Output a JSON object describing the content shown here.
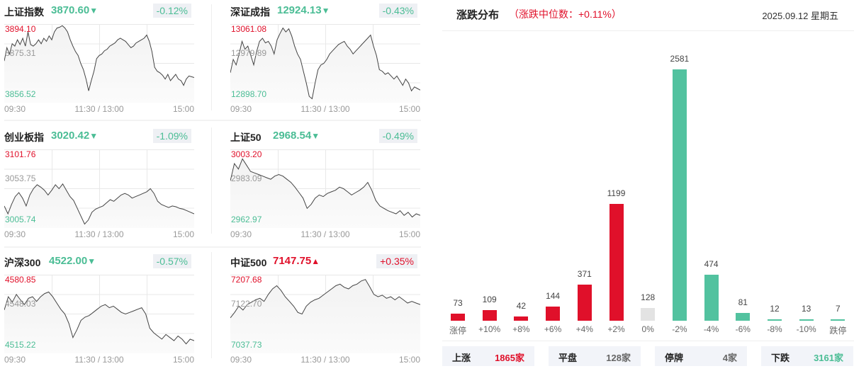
{
  "indices": [
    {
      "name": "上证指数",
      "price": "3870.60",
      "arrow": "▼",
      "dir": "down",
      "change": "-0.12%",
      "hi": "3894.10",
      "mid": "3875.31",
      "lo": "3856.52",
      "line": [
        0.53,
        0.7,
        0.62,
        0.75,
        0.72,
        0.8,
        0.74,
        0.82,
        0.72,
        0.9,
        0.74,
        0.72,
        0.75,
        0.8,
        0.75,
        0.82,
        0.78,
        0.85,
        0.8,
        0.9,
        0.95,
        0.96,
        0.98,
        0.95,
        0.9,
        0.8,
        0.72,
        0.65,
        0.6,
        0.5,
        0.42,
        0.3,
        0.15,
        0.28,
        0.4,
        0.56,
        0.6,
        0.62,
        0.66,
        0.68,
        0.72,
        0.74,
        0.76,
        0.8,
        0.82,
        0.8,
        0.78,
        0.74,
        0.7,
        0.72,
        0.76,
        0.78,
        0.8,
        0.82,
        0.86,
        0.78,
        0.65,
        0.45,
        0.4,
        0.38,
        0.35,
        0.3,
        0.36,
        0.28,
        0.32,
        0.36,
        0.3,
        0.28,
        0.22,
        0.3,
        0.34,
        0.33,
        0.32
      ],
      "x_labels": [
        "09:30",
        "11:30 / 13:00",
        "15:00"
      ]
    },
    {
      "name": "深证成指",
      "price": "12924.13",
      "arrow": "▼",
      "dir": "down",
      "change": "-0.43%",
      "hi": "13061.08",
      "mid": "12979.89",
      "lo": "12898.70",
      "line": [
        0.38,
        0.55,
        0.48,
        0.62,
        0.78,
        0.68,
        0.72,
        0.6,
        0.48,
        0.65,
        0.78,
        0.82,
        0.76,
        0.78,
        0.72,
        0.62,
        0.8,
        0.88,
        0.95,
        0.9,
        0.94,
        0.85,
        0.72,
        0.62,
        0.55,
        0.4,
        0.25,
        0.08,
        0.05,
        0.25,
        0.42,
        0.48,
        0.5,
        0.55,
        0.62,
        0.66,
        0.7,
        0.74,
        0.76,
        0.78,
        0.72,
        0.68,
        0.62,
        0.66,
        0.7,
        0.74,
        0.78,
        0.82,
        0.86,
        0.72,
        0.6,
        0.42,
        0.4,
        0.36,
        0.38,
        0.34,
        0.3,
        0.34,
        0.28,
        0.22,
        0.3,
        0.25,
        0.15,
        0.2,
        0.18,
        0.16
      ],
      "x_labels": [
        "09:30",
        "11:30 / 13:00",
        "15:00"
      ]
    },
    {
      "name": "创业板指",
      "price": "3020.42",
      "arrow": "▼",
      "dir": "down",
      "change": "-1.09%",
      "hi": "3101.76",
      "mid": "3053.75",
      "lo": "3005.74",
      "line": [
        0.28,
        0.18,
        0.3,
        0.4,
        0.45,
        0.38,
        0.28,
        0.42,
        0.5,
        0.55,
        0.52,
        0.48,
        0.42,
        0.48,
        0.55,
        0.5,
        0.56,
        0.48,
        0.4,
        0.35,
        0.25,
        0.15,
        0.05,
        0.1,
        0.2,
        0.24,
        0.26,
        0.28,
        0.32,
        0.36,
        0.34,
        0.38,
        0.42,
        0.44,
        0.42,
        0.38,
        0.4,
        0.42,
        0.44,
        0.46,
        0.5,
        0.44,
        0.34,
        0.3,
        0.28,
        0.26,
        0.28,
        0.27,
        0.25,
        0.24,
        0.22,
        0.2,
        0.18
      ],
      "x_labels": [
        "09:30",
        "11:30 / 13:00",
        "15:00"
      ]
    },
    {
      "name": "上证50",
      "price": "2968.54",
      "arrow": "▼",
      "dir": "down",
      "change": "-0.49%",
      "hi": "3003.20",
      "mid": "2983.09",
      "lo": "2962.97",
      "line": [
        0.6,
        0.82,
        0.75,
        0.88,
        0.8,
        0.72,
        0.7,
        0.68,
        0.66,
        0.64,
        0.62,
        0.66,
        0.68,
        0.66,
        0.62,
        0.58,
        0.52,
        0.45,
        0.38,
        0.25,
        0.3,
        0.38,
        0.42,
        0.4,
        0.44,
        0.46,
        0.48,
        0.52,
        0.5,
        0.46,
        0.42,
        0.45,
        0.48,
        0.52,
        0.58,
        0.48,
        0.35,
        0.28,
        0.25,
        0.22,
        0.2,
        0.18,
        0.22,
        0.16,
        0.2,
        0.14,
        0.18,
        0.16
      ],
      "x_labels": [
        "09:30",
        "11:30 / 13:00",
        "15:00"
      ]
    },
    {
      "name": "沪深300",
      "price": "4522.00",
      "arrow": "▼",
      "dir": "down",
      "change": "-0.57%",
      "hi": "4580.85",
      "mid": "4548.03",
      "lo": "4515.22",
      "line": [
        0.55,
        0.72,
        0.65,
        0.75,
        0.68,
        0.62,
        0.7,
        0.72,
        0.66,
        0.72,
        0.76,
        0.78,
        0.72,
        0.64,
        0.56,
        0.5,
        0.38,
        0.2,
        0.3,
        0.42,
        0.46,
        0.48,
        0.52,
        0.56,
        0.6,
        0.62,
        0.58,
        0.6,
        0.56,
        0.52,
        0.5,
        0.52,
        0.54,
        0.56,
        0.58,
        0.5,
        0.32,
        0.26,
        0.22,
        0.18,
        0.24,
        0.2,
        0.16,
        0.22,
        0.18,
        0.12,
        0.18,
        0.16
      ],
      "x_labels": [
        "09:30",
        "11:30 / 13:00",
        "15:00"
      ]
    },
    {
      "name": "中证500",
      "price": "7147.75",
      "arrow": "▲",
      "dir": "up",
      "change": "+0.35%",
      "hi": "7207.68",
      "mid": "7122.70",
      "lo": "7037.73",
      "line": [
        0.45,
        0.52,
        0.6,
        0.55,
        0.62,
        0.65,
        0.68,
        0.7,
        0.66,
        0.75,
        0.82,
        0.86,
        0.8,
        0.72,
        0.66,
        0.6,
        0.52,
        0.5,
        0.6,
        0.65,
        0.68,
        0.7,
        0.74,
        0.78,
        0.82,
        0.86,
        0.88,
        0.84,
        0.82,
        0.86,
        0.88,
        0.92,
        0.94,
        0.85,
        0.75,
        0.72,
        0.74,
        0.7,
        0.72,
        0.68,
        0.72,
        0.68,
        0.64,
        0.66,
        0.64,
        0.62
      ],
      "x_labels": [
        "09:30",
        "11:30 / 13:00",
        "15:00"
      ]
    }
  ],
  "distribution": {
    "title": "涨跌分布",
    "median_text": "（涨跌中位数：+0.11%）",
    "date": "2025.09.12 星期五",
    "summary": [
      {
        "label": "上涨",
        "value": "1865家",
        "color": "#e0102a"
      },
      {
        "label": "平盘",
        "value": "128家",
        "color": "#666666"
      },
      {
        "label": "停牌",
        "value": "4家",
        "color": "#666666"
      },
      {
        "label": "下跌",
        "value": "3161家",
        "color": "#4bbd95"
      }
    ]
  },
  "chart_data": {
    "type": "bar",
    "title": "涨跌分布",
    "subtitle": "涨跌中位数：+0.11%",
    "categories": [
      "涨停",
      "+10%",
      "+8%",
      "+6%",
      "+4%",
      "+2%",
      "0%",
      "-2%",
      "-4%",
      "-6%",
      "-8%",
      "-10%",
      "跌停"
    ],
    "values": [
      73,
      109,
      42,
      144,
      371,
      1199,
      128,
      2581,
      474,
      81,
      12,
      13,
      7
    ],
    "colors": [
      "#e0102a",
      "#e0102a",
      "#e0102a",
      "#e0102a",
      "#e0102a",
      "#e0102a",
      "#e3e3e3",
      "#52c29f",
      "#52c29f",
      "#52c29f",
      "#52c29f",
      "#52c29f",
      "#52c29f"
    ],
    "xlabel": "",
    "ylabel": "",
    "grid": false
  },
  "colors": {
    "up": "#e0102a",
    "down": "#4bbd95",
    "flat": "#e3e3e3"
  }
}
